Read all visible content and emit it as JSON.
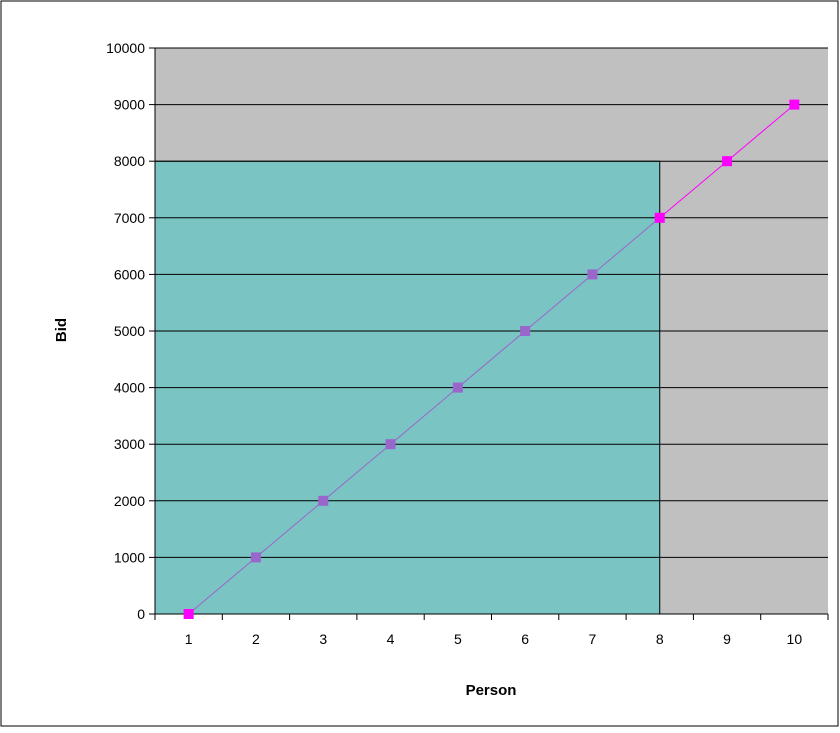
{
  "chart_data": {
    "type": "line",
    "title": "",
    "xlabel": "Person",
    "ylabel": "Bid",
    "x": [
      1,
      2,
      3,
      4,
      5,
      6,
      7,
      8,
      9,
      10
    ],
    "xlim": [
      0.5,
      10.5
    ],
    "ylim": [
      0,
      10000
    ],
    "y_ticks": [
      0,
      1000,
      2000,
      3000,
      4000,
      5000,
      6000,
      7000,
      8000,
      9000,
      10000
    ],
    "y_tick_labels": [
      "0",
      "1000",
      "2000",
      "3000",
      "4000",
      "5000",
      "6000",
      "7000",
      "8000",
      "9000",
      "10000"
    ],
    "x_tick_labels": [
      "1",
      "2",
      "3",
      "4",
      "5",
      "6",
      "7",
      "8",
      "9",
      "10"
    ],
    "grid": "horizontal",
    "legend": "none",
    "series": [
      {
        "values": [
          0,
          1000,
          2000,
          3000,
          4000,
          5000,
          6000,
          7000,
          8000,
          9000
        ],
        "colors": [
          "#ff00ff",
          "#9966cc",
          "#9966cc",
          "#9966cc",
          "#9966cc",
          "#9966cc",
          "#9966cc",
          "#ff00ff",
          "#ff00ff",
          "#ff00ff"
        ],
        "segment_colors": [
          "#9966cc",
          "#9966cc",
          "#9966cc",
          "#9966cc",
          "#9966cc",
          "#9966cc",
          "#9966cc",
          "#ff00ff",
          "#ff00ff"
        ]
      }
    ],
    "shaded_region": {
      "x_from": 0.5,
      "x_to": 8,
      "y_from": 0,
      "y_to": 8000,
      "color": "#7bc4c4"
    },
    "colors": {
      "plot_background": "#c0c0c0",
      "gridline": "#000000",
      "chart_border": "#000000"
    }
  }
}
